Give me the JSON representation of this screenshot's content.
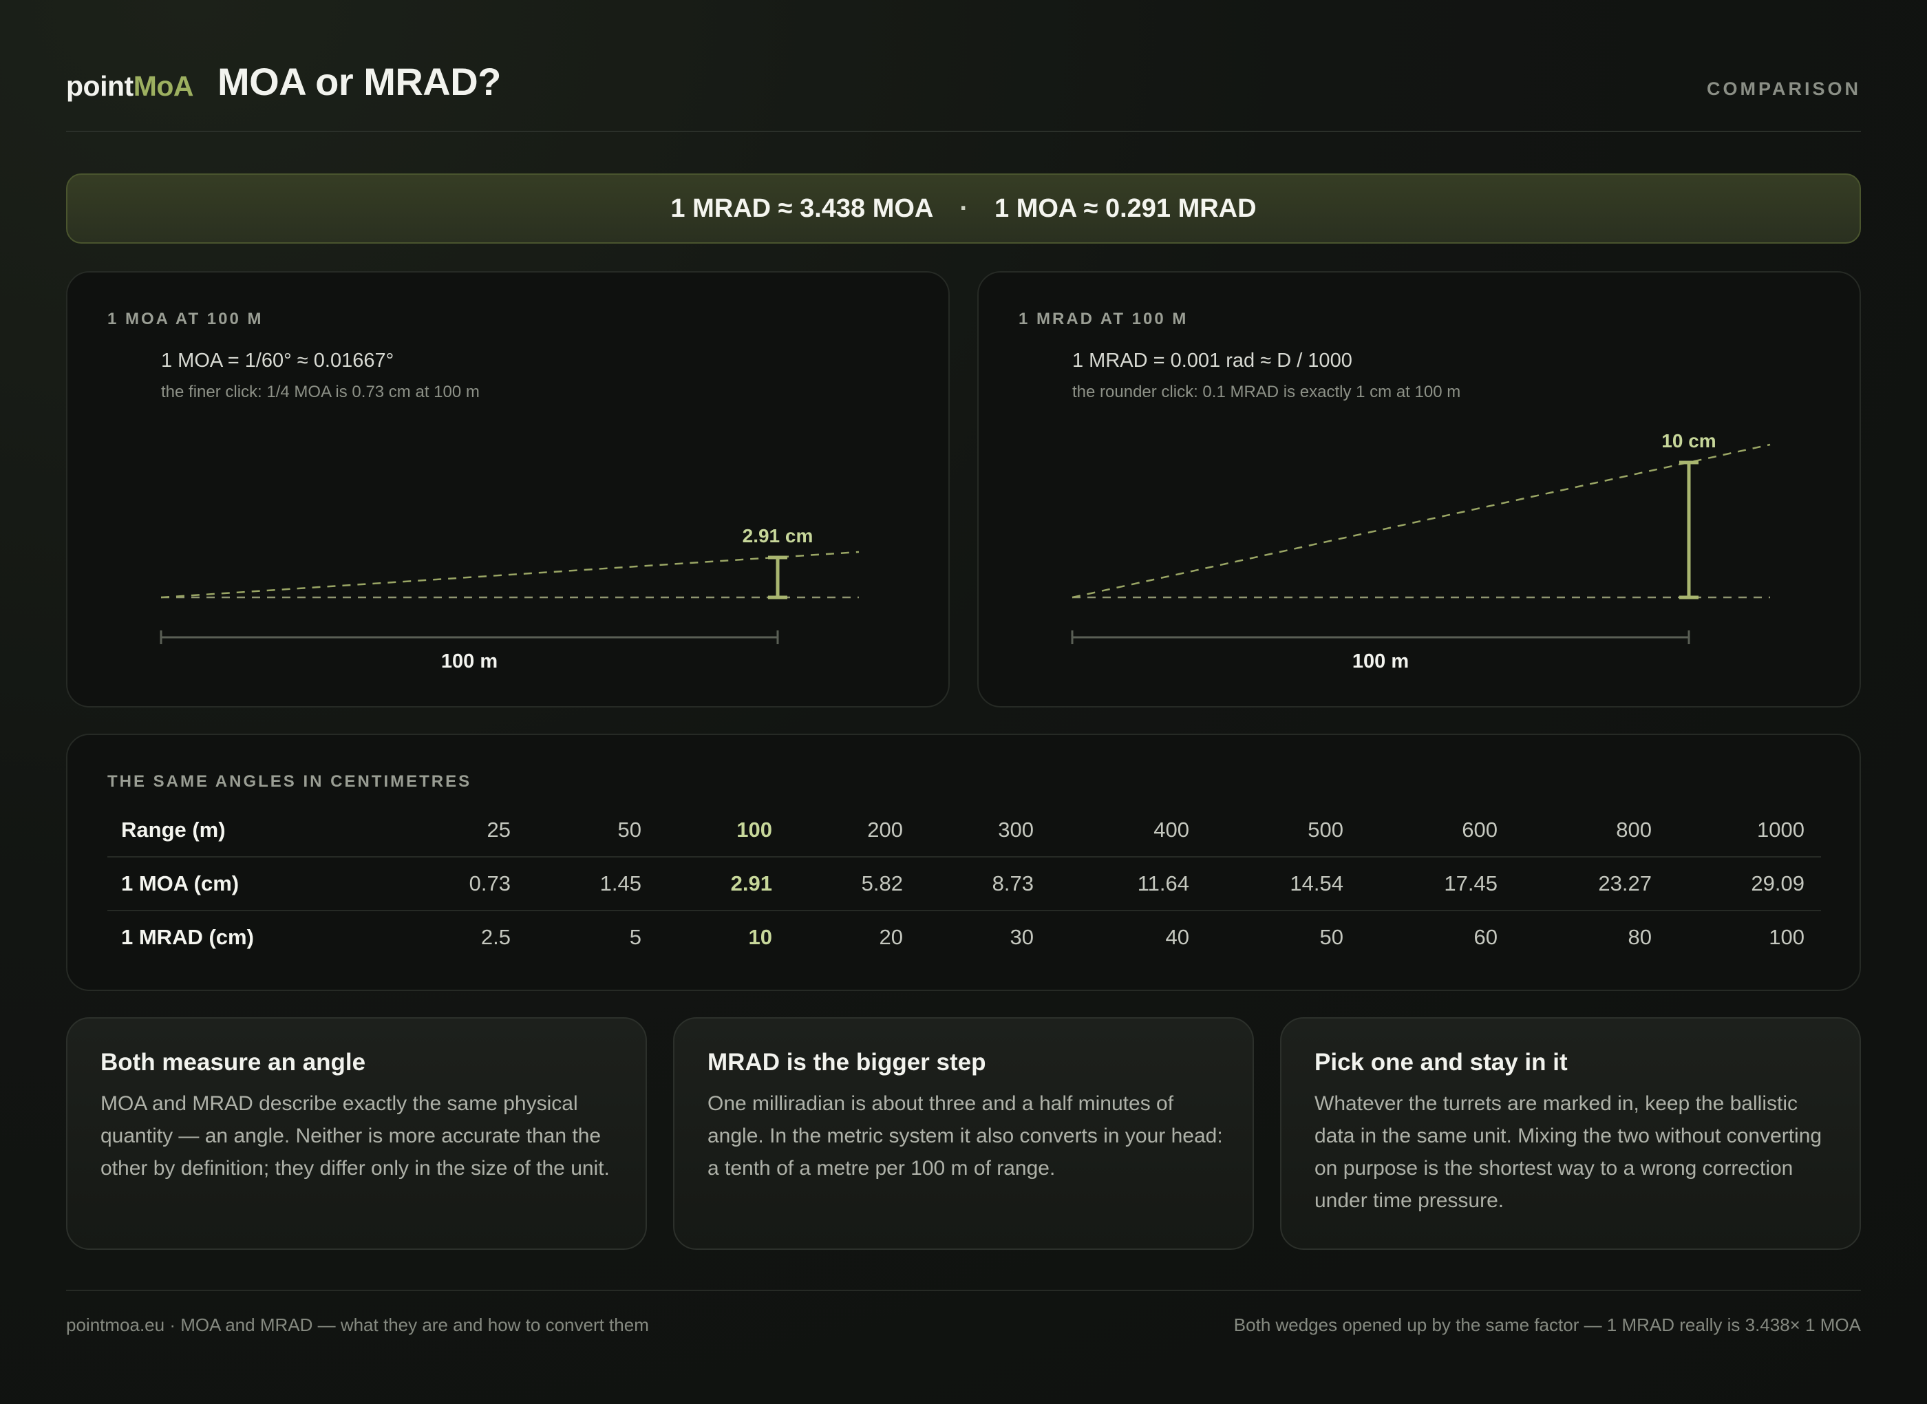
{
  "header": {
    "logo_part1": "point",
    "logo_part2": "MoA",
    "title": "MOA or MRAD?",
    "tag": "COMPARISON"
  },
  "banner": {
    "left": "1 MRAD ≈ 3.438 MOA",
    "separator": "·",
    "right": "1 MOA ≈ 0.291 MRAD"
  },
  "moa_panel": {
    "title": "1 MOA AT 100 M",
    "formula": "1 MOA = 1/60° ≈ 0.01667°",
    "note": "the finer click: 1/4 MOA is 0.73 cm at 100 m",
    "height_label": "2.91 cm",
    "distance_label": "100 m",
    "height_cm": 2.91
  },
  "mrad_panel": {
    "title": "1 MRAD AT 100 M",
    "formula": "1 MRAD = 0.001 rad ≈ D / 1000",
    "note": "the rounder click: 0.1 MRAD is exactly 1 cm at 100 m",
    "height_label": "10 cm",
    "distance_label": "100 m",
    "height_cm": 10
  },
  "table": {
    "title": "THE SAME ANGLES IN CENTIMETRES",
    "rows": [
      {
        "label": "Range (m)",
        "values": [
          "25",
          "50",
          "100",
          "200",
          "300",
          "400",
          "500",
          "600",
          "800",
          "1000"
        ]
      },
      {
        "label": "1 MOA (cm)",
        "values": [
          "0.73",
          "1.45",
          "2.91",
          "5.82",
          "8.73",
          "11.64",
          "14.54",
          "17.45",
          "23.27",
          "29.09"
        ]
      },
      {
        "label": "1 MRAD (cm)",
        "values": [
          "2.5",
          "5",
          "10",
          "20",
          "30",
          "40",
          "50",
          "60",
          "80",
          "100"
        ]
      }
    ],
    "highlight_index": 2
  },
  "cards": [
    {
      "heading": "Both measure an angle",
      "body": "MOA and MRAD describe exactly the same physical quantity — an angle. Neither is more accurate than the other by definition; they differ only in the size of the unit."
    },
    {
      "heading": "MRAD is the bigger step",
      "body": "One milliradian is about three and a half minutes of angle. In the metric system it also converts in your head: a tenth of a metre per 100 m of range."
    },
    {
      "heading": "Pick one and stay in it",
      "body": "Whatever the turrets are marked in, keep the ballistic data in the same unit. Mixing the two without converting on purpose is the shortest way to a wrong correction under time pressure."
    }
  ],
  "footer": {
    "left": "pointmoa.eu · MOA and MRAD — what they are and how to convert them",
    "right": "Both wedges opened up by the same factor — 1 MRAD really is 3.438× 1 MOA"
  },
  "colors": {
    "accent": "#9db060",
    "highlight": "#c7d79a",
    "background": "#121512"
  }
}
